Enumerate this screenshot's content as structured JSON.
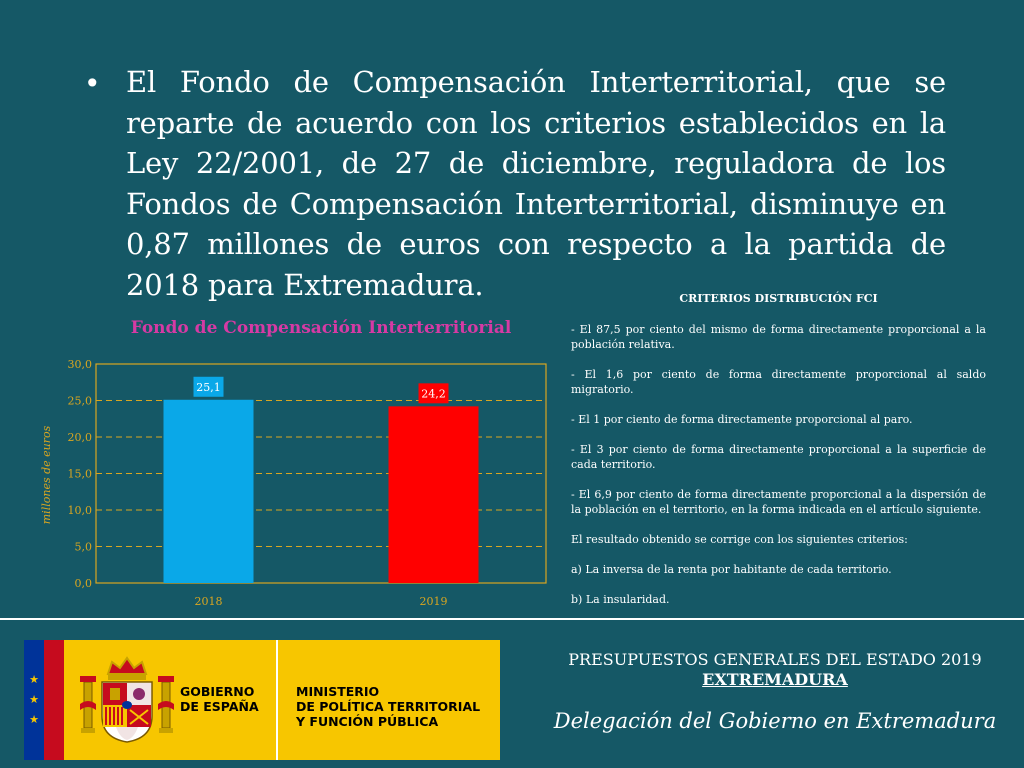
{
  "bullet": {
    "marker": "•",
    "text": "El Fondo de Compensación Interterritorial, que se reparte de acuerdo con los criterios establecidos en la Ley 22/2001, de 27 de diciembre, reguladora de los Fondos de Compensación Interterritorial, disminuye en 0,87 millones de euros con respecto a la partida de 2018 para Extremadura."
  },
  "chart_data": {
    "type": "bar",
    "title": "Fondo de Compensación Interterritorial",
    "categories": [
      "2018",
      "2019"
    ],
    "values": [
      25.1,
      24.2
    ],
    "data_labels": [
      "25,1",
      "24,2"
    ],
    "colors": [
      "#0aa8e8",
      "#ff0000"
    ],
    "ylabel": "millones de euros",
    "ylim": [
      0,
      30
    ],
    "yticks": [
      "0,0",
      "5,0",
      "10,0",
      "15,0",
      "20,0",
      "25,0",
      "30,0"
    ],
    "grid": true,
    "accent": "#d9a620"
  },
  "criteria": {
    "title": "CRITERIOS DISTRIBUCIÓN FCI",
    "items": [
      "- El 87,5 por ciento del mismo de forma directamente proporcional a la población relativa.",
      "- El 1,6 por ciento de forma directamente proporcional al saldo migratorio.",
      "- El 1 por ciento de forma directamente proporcional al paro.",
      "- El 3 por ciento de forma directamente proporcional a la superficie de cada territorio.",
      "- El 6,9 por ciento de forma directamente proporcional a la dispersión de la población en el territorio, en la forma indicada en el artículo siguiente.",
      "El resultado obtenido se corrige con los siguientes criterios:",
      "a) La inversa de la renta por habitante de cada territorio.",
      "b) La insularidad."
    ]
  },
  "footer": {
    "government": "GOBIERNO\nDE ESPAÑA",
    "ministry": "MINISTERIO\nDE POLÍTICA TERRITORIAL\nY FUNCIÓN PÚBLICA",
    "budget": "PRESUPUESTOS GENERALES DEL ESTADO 2019",
    "region": "EXTREMADURA",
    "delegation": "Delegación del Gobierno en Extremadura",
    "eu_stars": "★\n★\n★",
    "coat_icon": "coat-of-arms-icon"
  },
  "colors": {
    "background": "#155866",
    "title_magenta": "#d63aa4",
    "band_yellow": "#f7c600",
    "eu_blue": "#003399",
    "spain_red": "#c60b1e"
  }
}
